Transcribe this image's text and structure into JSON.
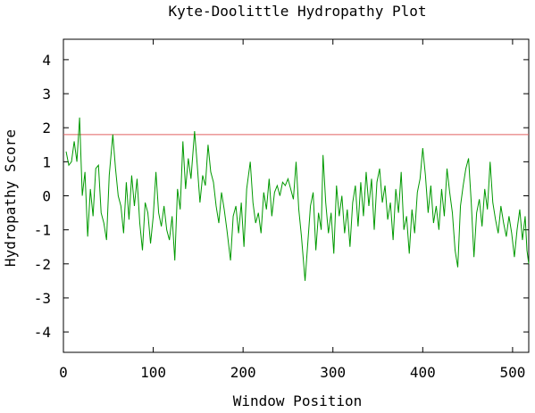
{
  "chart_data": {
    "type": "line",
    "title": "Kyte-Doolittle Hydropathy Plot",
    "x_label": "Window Position",
    "y_label": "Hydropathy Score",
    "x": [
      3,
      6,
      9,
      12,
      15,
      18,
      21,
      24,
      27,
      30,
      33,
      36,
      39,
      42,
      45,
      48,
      51,
      55,
      58,
      61,
      64,
      67,
      70,
      73,
      76,
      79,
      82,
      85,
      88,
      91,
      94,
      97,
      100,
      103,
      106,
      109,
      112,
      115,
      118,
      121,
      124,
      127,
      130,
      133,
      136,
      139,
      142,
      146,
      149,
      152,
      155,
      158,
      161,
      164,
      167,
      170,
      173,
      176,
      179,
      182,
      186,
      189,
      192,
      195,
      198,
      201,
      204,
      208,
      211,
      214,
      217,
      220,
      223,
      226,
      229,
      232,
      235,
      238,
      241,
      244,
      247,
      250,
      253,
      256,
      259,
      262,
      265,
      269,
      272,
      275,
      278,
      281,
      284,
      287,
      289,
      292,
      295,
      298,
      301,
      304,
      307,
      310,
      313,
      316,
      319,
      322,
      325,
      328,
      331,
      334,
      337,
      340,
      343,
      346,
      349,
      352,
      355,
      358,
      361,
      364,
      367,
      370,
      373,
      376,
      379,
      382,
      385,
      388,
      391,
      394,
      397,
      400,
      403,
      406,
      409,
      412,
      415,
      418,
      421,
      424,
      427,
      430,
      433,
      436,
      439,
      442,
      445,
      448,
      451,
      454,
      457,
      460,
      463,
      466,
      469,
      472,
      475,
      478,
      481,
      484,
      487,
      490,
      493,
      496,
      499,
      502,
      505,
      508,
      511,
      514,
      516,
      518
    ],
    "series": [
      {
        "color": "#009900",
        "values": [
          1.3,
          0.9,
          1.0,
          1.6,
          1.0,
          2.3,
          0.0,
          0.7,
          -1.2,
          0.2,
          -0.6,
          0.8,
          0.9,
          -0.5,
          -0.8,
          -1.3,
          0.6,
          1.8,
          0.8,
          0.0,
          -0.3,
          -1.1,
          0.4,
          -0.7,
          0.6,
          -0.3,
          0.5,
          -0.8,
          -1.6,
          -0.2,
          -0.5,
          -1.4,
          -0.6,
          0.7,
          -0.5,
          -0.9,
          -0.3,
          -1.0,
          -1.3,
          -0.6,
          -1.9,
          0.2,
          -0.4,
          1.6,
          0.2,
          1.1,
          0.5,
          1.9,
          0.9,
          -0.2,
          0.6,
          0.3,
          1.5,
          0.7,
          0.4,
          -0.3,
          -0.8,
          0.1,
          -0.4,
          -1.0,
          -1.9,
          -0.6,
          -0.3,
          -1.1,
          -0.2,
          -1.5,
          0.2,
          1.0,
          -0.2,
          -0.8,
          -0.5,
          -1.1,
          0.1,
          -0.4,
          0.5,
          -0.6,
          0.1,
          0.3,
          0.0,
          0.4,
          0.3,
          0.5,
          0.2,
          -0.1,
          1.0,
          -0.4,
          -1.2,
          -2.5,
          -1.4,
          -0.3,
          0.1,
          -1.6,
          -0.5,
          -1.0,
          1.2,
          -0.2,
          -1.1,
          -0.5,
          -1.7,
          0.3,
          -0.6,
          0.0,
          -1.1,
          -0.4,
          -1.5,
          -0.2,
          0.3,
          -0.9,
          0.4,
          -0.6,
          0.7,
          -0.3,
          0.5,
          -1.0,
          0.4,
          0.8,
          -0.2,
          0.3,
          -0.7,
          -0.2,
          -1.3,
          0.2,
          -0.5,
          0.7,
          -1.0,
          -0.6,
          -1.7,
          -0.4,
          -1.1,
          0.1,
          0.5,
          1.4,
          0.6,
          -0.5,
          0.3,
          -0.8,
          -0.3,
          -1.0,
          0.2,
          -0.6,
          0.8,
          0.1,
          -0.5,
          -1.6,
          -2.1,
          -0.3,
          0.3,
          0.8,
          1.1,
          -0.2,
          -1.8,
          -0.5,
          -0.1,
          -0.9,
          0.2,
          -0.4,
          1.0,
          -0.2,
          -0.7,
          -1.1,
          -0.3,
          -0.8,
          -1.2,
          -0.6,
          -1.1,
          -1.8,
          -1.0,
          -0.4,
          -1.3,
          -0.6,
          -1.6,
          -2.0
        ]
      }
    ],
    "reference_line": {
      "value": 1.8,
      "color": "#e06060"
    },
    "xlim": [
      0,
      518
    ],
    "ylim": [
      -4.6,
      4.6
    ],
    "xticks": [
      0,
      100,
      200,
      300,
      400,
      500
    ],
    "yticks": [
      -4,
      -3,
      -2,
      -1,
      0,
      1,
      2,
      3,
      4
    ]
  }
}
